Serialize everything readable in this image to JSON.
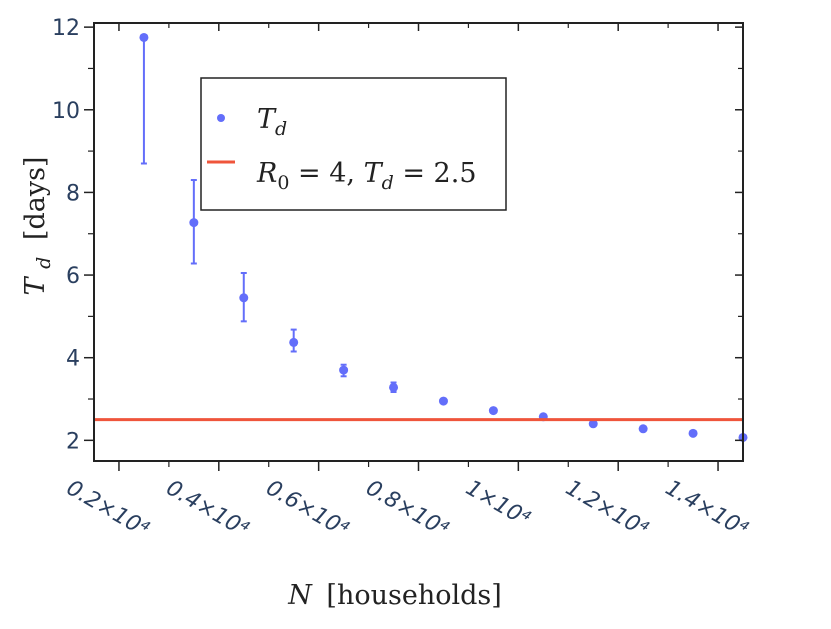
{
  "chart_data": {
    "type": "scatter",
    "title": "",
    "xlabel": {
      "var": "N",
      "unit": "[households]"
    },
    "ylabel": {
      "var": "T",
      "sub": "d",
      "unit": "[days]"
    },
    "xlim": [
      1500,
      14500
    ],
    "ylim": [
      1.5,
      12.1
    ],
    "x_ticks": [
      {
        "value": 2000,
        "label": "0.2×10⁴"
      },
      {
        "value": 4000,
        "label": "0.4×10⁴"
      },
      {
        "value": 6000,
        "label": "0.6×10⁴"
      },
      {
        "value": 8000,
        "label": "0.8×10⁴"
      },
      {
        "value": 10000,
        "label": "1×10⁴"
      },
      {
        "value": 12000,
        "label": "1.2×10⁴"
      },
      {
        "value": 14000,
        "label": "1.4×10⁴"
      }
    ],
    "y_ticks": [
      {
        "value": 2,
        "label": "2"
      },
      {
        "value": 4,
        "label": "4"
      },
      {
        "value": 6,
        "label": "6"
      },
      {
        "value": 8,
        "label": "8"
      },
      {
        "value": 10,
        "label": "10"
      },
      {
        "value": 12,
        "label": "12"
      }
    ],
    "grid": false,
    "legend_position": "top-left",
    "series": [
      {
        "name": "T_d",
        "type": "scatter",
        "color": "#636efa",
        "points": [
          {
            "x": 2500,
            "y": 11.75,
            "err_low": 8.7,
            "err_high": 11.75
          },
          {
            "x": 3500,
            "y": 7.27,
            "err_low": 6.28,
            "err_high": 8.3
          },
          {
            "x": 4500,
            "y": 5.45,
            "err_low": 4.88,
            "err_high": 6.05
          },
          {
            "x": 5500,
            "y": 4.37,
            "err_low": 4.15,
            "err_high": 4.68
          },
          {
            "x": 6500,
            "y": 3.7,
            "err_low": 3.55,
            "err_high": 3.83
          },
          {
            "x": 7500,
            "y": 3.28,
            "err_low": 3.17,
            "err_high": 3.4
          },
          {
            "x": 8500,
            "y": 2.95
          },
          {
            "x": 9500,
            "y": 2.72
          },
          {
            "x": 10500,
            "y": 2.57
          },
          {
            "x": 11500,
            "y": 2.4
          },
          {
            "x": 12500,
            "y": 2.28
          },
          {
            "x": 13500,
            "y": 2.17
          },
          {
            "x": 14500,
            "y": 2.07
          }
        ]
      },
      {
        "name": "R_0 = 4, T_d = 2.5",
        "type": "hline",
        "color": "#ef553b",
        "y": 2.5
      }
    ],
    "legend": [
      {
        "series": "T_d",
        "parts": [
          {
            "t": "T",
            "i": true
          },
          {
            "t": "d",
            "i": true,
            "sub": true
          }
        ]
      },
      {
        "series": "R_0 = 4, T_d = 2.5",
        "parts": [
          {
            "t": "R",
            "i": true
          },
          {
            "t": "0",
            "sub": true
          },
          {
            "t": " = 4, "
          },
          {
            "t": "T",
            "i": true
          },
          {
            "t": "d",
            "i": true,
            "sub": true
          },
          {
            "t": " = 2.5"
          }
        ]
      }
    ]
  }
}
